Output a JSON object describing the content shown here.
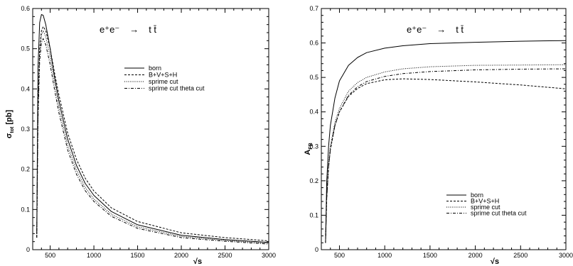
{
  "chart_data": [
    {
      "type": "line",
      "reaction": {
        "lhs": "e⁺e⁻",
        "arrow": "→",
        "rhs": "t t̄"
      },
      "xlabel": "√s",
      "ylabel": "σ",
      "ylabel_sub": "tot",
      "ylabel_unit": "[pb]",
      "xlim": [
        300,
        3000
      ],
      "ylim": [
        0,
        0.6
      ],
      "xticks": [
        500,
        1000,
        1500,
        2000,
        2500,
        3000
      ],
      "yticks": [
        0,
        0.1,
        0.2,
        0.3,
        0.4,
        0.5,
        0.6
      ],
      "legend_placement": "upper-right",
      "series": [
        {
          "name": "born",
          "dash": "solid",
          "color": "#000000",
          "x": [
            346,
            360,
            380,
            400,
            420,
            450,
            500,
            550,
            600,
            700,
            800,
            900,
            1000,
            1200,
            1500,
            2000,
            2500,
            3000
          ],
          "y": [
            0.04,
            0.45,
            0.565,
            0.585,
            0.583,
            0.56,
            0.5,
            0.43,
            0.37,
            0.275,
            0.21,
            0.165,
            0.135,
            0.095,
            0.062,
            0.036,
            0.025,
            0.018
          ]
        },
        {
          "name": "B+V+S+H",
          "dash": "dashed",
          "color": "#000000",
          "x": [
            346,
            360,
            380,
            400,
            420,
            450,
            500,
            550,
            600,
            700,
            800,
            900,
            1000,
            1200,
            1500,
            2000,
            2500,
            3000
          ],
          "y": [
            0.03,
            0.35,
            0.5,
            0.545,
            0.555,
            0.545,
            0.5,
            0.44,
            0.385,
            0.29,
            0.225,
            0.178,
            0.146,
            0.104,
            0.07,
            0.042,
            0.03,
            0.022
          ]
        },
        {
          "name": "sprime cut",
          "dash": "dotted",
          "color": "#000000",
          "x": [
            346,
            360,
            380,
            400,
            420,
            450,
            500,
            550,
            600,
            700,
            800,
            900,
            1000,
            1200,
            1500,
            2000,
            2500,
            3000
          ],
          "y": [
            0.03,
            0.34,
            0.49,
            0.535,
            0.545,
            0.53,
            0.48,
            0.415,
            0.355,
            0.26,
            0.198,
            0.155,
            0.126,
            0.088,
            0.057,
            0.033,
            0.023,
            0.016
          ]
        },
        {
          "name": "sprime cut theta cut",
          "dash": "dashdot",
          "color": "#000000",
          "x": [
            346,
            360,
            380,
            400,
            420,
            450,
            500,
            550,
            600,
            700,
            800,
            900,
            1000,
            1200,
            1500,
            2000,
            2500,
            3000
          ],
          "y": [
            0.03,
            0.32,
            0.47,
            0.515,
            0.525,
            0.51,
            0.46,
            0.398,
            0.34,
            0.248,
            0.188,
            0.147,
            0.12,
            0.083,
            0.053,
            0.03,
            0.021,
            0.014
          ]
        }
      ]
    },
    {
      "type": "line",
      "reaction": {
        "lhs": "e⁺e⁻",
        "arrow": "→",
        "rhs": "t t̄"
      },
      "xlabel": "√s",
      "ylabel": "A",
      "ylabel_sub": "FB",
      "ylabel_unit": "",
      "xlim": [
        300,
        3000
      ],
      "ylim": [
        0,
        0.7
      ],
      "xticks": [
        500,
        1000,
        1500,
        2000,
        2500,
        3000
      ],
      "yticks": [
        0,
        0.1,
        0.2,
        0.3,
        0.4,
        0.5,
        0.6,
        0.7
      ],
      "legend_placement": "lower-right",
      "series": [
        {
          "name": "born",
          "dash": "solid",
          "color": "#000000",
          "x": [
            346,
            360,
            380,
            400,
            450,
            500,
            600,
            700,
            800,
            1000,
            1200,
            1500,
            2000,
            2500,
            3000
          ],
          "y": [
            0.02,
            0.2,
            0.3,
            0.36,
            0.44,
            0.49,
            0.535,
            0.558,
            0.572,
            0.585,
            0.592,
            0.598,
            0.602,
            0.605,
            0.607
          ]
        },
        {
          "name": "B+V+S+H",
          "dash": "dashed",
          "color": "#000000",
          "x": [
            346,
            360,
            380,
            400,
            450,
            500,
            600,
            700,
            800,
            1000,
            1200,
            1500,
            2000,
            2500,
            3000
          ],
          "y": [
            0.02,
            0.15,
            0.24,
            0.29,
            0.36,
            0.4,
            0.445,
            0.468,
            0.482,
            0.493,
            0.496,
            0.494,
            0.487,
            0.478,
            0.467
          ]
        },
        {
          "name": "sprime cut",
          "dash": "dotted",
          "color": "#000000",
          "x": [
            346,
            360,
            380,
            400,
            450,
            500,
            600,
            700,
            800,
            1000,
            1200,
            1500,
            2000,
            2500,
            3000
          ],
          "y": [
            0.02,
            0.16,
            0.25,
            0.3,
            0.37,
            0.41,
            0.46,
            0.485,
            0.5,
            0.516,
            0.525,
            0.531,
            0.535,
            0.536,
            0.537
          ]
        },
        {
          "name": "sprime cut theta cut",
          "dash": "dashdot",
          "color": "#000000",
          "x": [
            346,
            360,
            380,
            400,
            450,
            500,
            600,
            700,
            800,
            1000,
            1200,
            1500,
            2000,
            2500,
            3000
          ],
          "y": [
            0.02,
            0.15,
            0.24,
            0.29,
            0.36,
            0.4,
            0.448,
            0.473,
            0.488,
            0.503,
            0.511,
            0.517,
            0.522,
            0.524,
            0.525
          ]
        }
      ]
    }
  ]
}
